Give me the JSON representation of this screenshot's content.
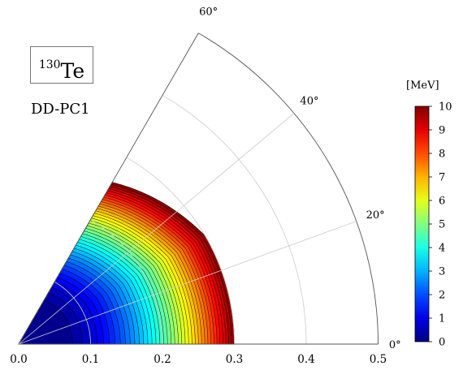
{
  "nucleus": {
    "mass_number": "130",
    "symbol": "Te"
  },
  "interaction": "DD-PC1",
  "chart_data": {
    "type": "heatmap",
    "subtype": "polar-beta-gamma-potential-energy-surface",
    "xlabel": "",
    "ylabel": "",
    "radial_range": [
      0.0,
      0.5
    ],
    "radial_ticks": [
      "0.0",
      "0.1",
      "0.2",
      "0.3",
      "0.4",
      "0.5"
    ],
    "angular_range": [
      0,
      60
    ],
    "angular_ticks": [
      "0°",
      "20°",
      "40°",
      "60°"
    ],
    "grid": true,
    "colorbar": {
      "label": "[MeV]",
      "range": [
        0,
        10
      ],
      "ticks": [
        "0",
        "1",
        "2",
        "3",
        "4",
        "5",
        "6",
        "7",
        "8",
        "9",
        "10"
      ],
      "colormap": "jet"
    },
    "contour_levels": {
      "min": 0,
      "max": 10,
      "step": 0.25
    },
    "minimum": {
      "beta": 0.05,
      "gamma": 30,
      "energy": 0.0
    },
    "energy_cutoff": 10,
    "boundary_beta": {
      "gamma_0": 0.3,
      "gamma_30": 0.3,
      "gamma_60": 0.26
    }
  }
}
